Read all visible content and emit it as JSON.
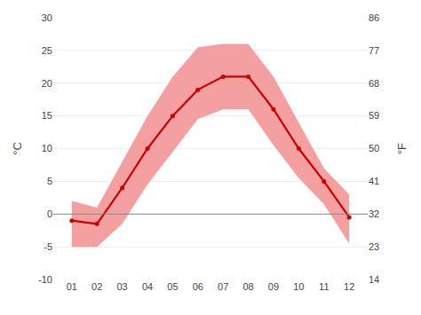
{
  "chart_data": {
    "type": "line",
    "categories": [
      "01",
      "02",
      "03",
      "04",
      "05",
      "06",
      "07",
      "08",
      "09",
      "10",
      "11",
      "12"
    ],
    "series": [
      {
        "type": "band",
        "color": "#f5a0a0",
        "low": [
          -5.0,
          -5.0,
          -1.5,
          4.5,
          9.5,
          14.5,
          16.0,
          16.0,
          10.5,
          5.5,
          1.5,
          -4.5
        ],
        "high": [
          2.0,
          1.0,
          8.0,
          15.0,
          21.0,
          25.5,
          26.0,
          26.0,
          21.0,
          14.0,
          7.0,
          3.0
        ]
      },
      {
        "type": "line",
        "color": "#cc0000",
        "marker": "circle",
        "values": [
          -1.0,
          -1.5,
          4.0,
          10.0,
          15.0,
          19.0,
          21.0,
          21.0,
          16.0,
          10.0,
          5.0,
          -0.5
        ]
      }
    ],
    "ylabel": "°C",
    "y2label": "°F",
    "ylim": [
      -10,
      30
    ],
    "yticks": [
      -10,
      -5,
      0,
      5,
      10,
      15,
      20,
      25,
      30
    ],
    "y2lim": [
      14,
      86
    ],
    "y2ticks": [
      14,
      23,
      32,
      41,
      50,
      59,
      68,
      77,
      86
    ],
    "grid": true,
    "reference_lines": [
      {
        "y": 0,
        "color": "#888888"
      }
    ]
  }
}
